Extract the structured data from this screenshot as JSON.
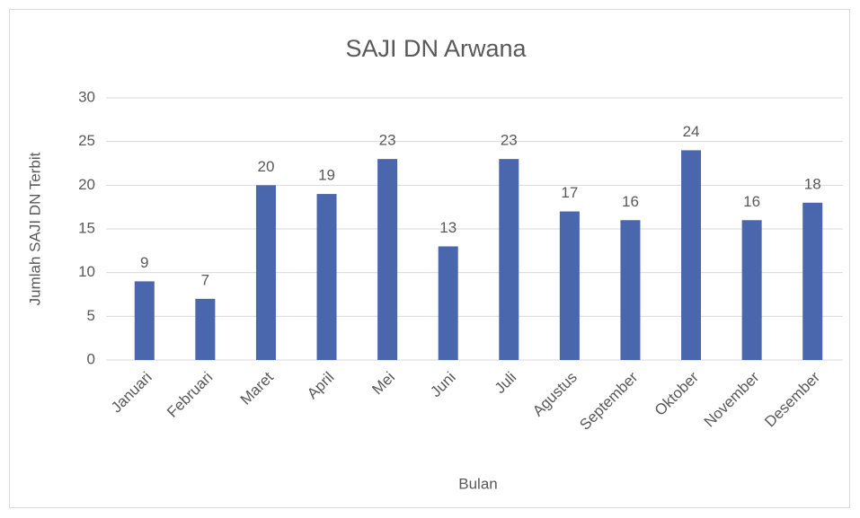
{
  "chart_data": {
    "type": "bar",
    "title": "SAJI DN Arwana",
    "x_label": "Bulan",
    "y_label": "Jumlah SAJI DN Terbit",
    "categories": [
      "Januari",
      "Februari",
      "Maret",
      "April",
      "Mei",
      "Juni",
      "Juli",
      "Agustus",
      "September",
      "Oktober",
      "November",
      "Desember"
    ],
    "values": [
      9,
      7,
      20,
      19,
      23,
      13,
      23,
      17,
      16,
      24,
      16,
      18
    ],
    "color": "#4a66ac",
    "ylim": [
      0,
      30
    ],
    "yticks": [
      0,
      5,
      10,
      15,
      20,
      25,
      30
    ],
    "grid": true,
    "data_labels": true
  }
}
